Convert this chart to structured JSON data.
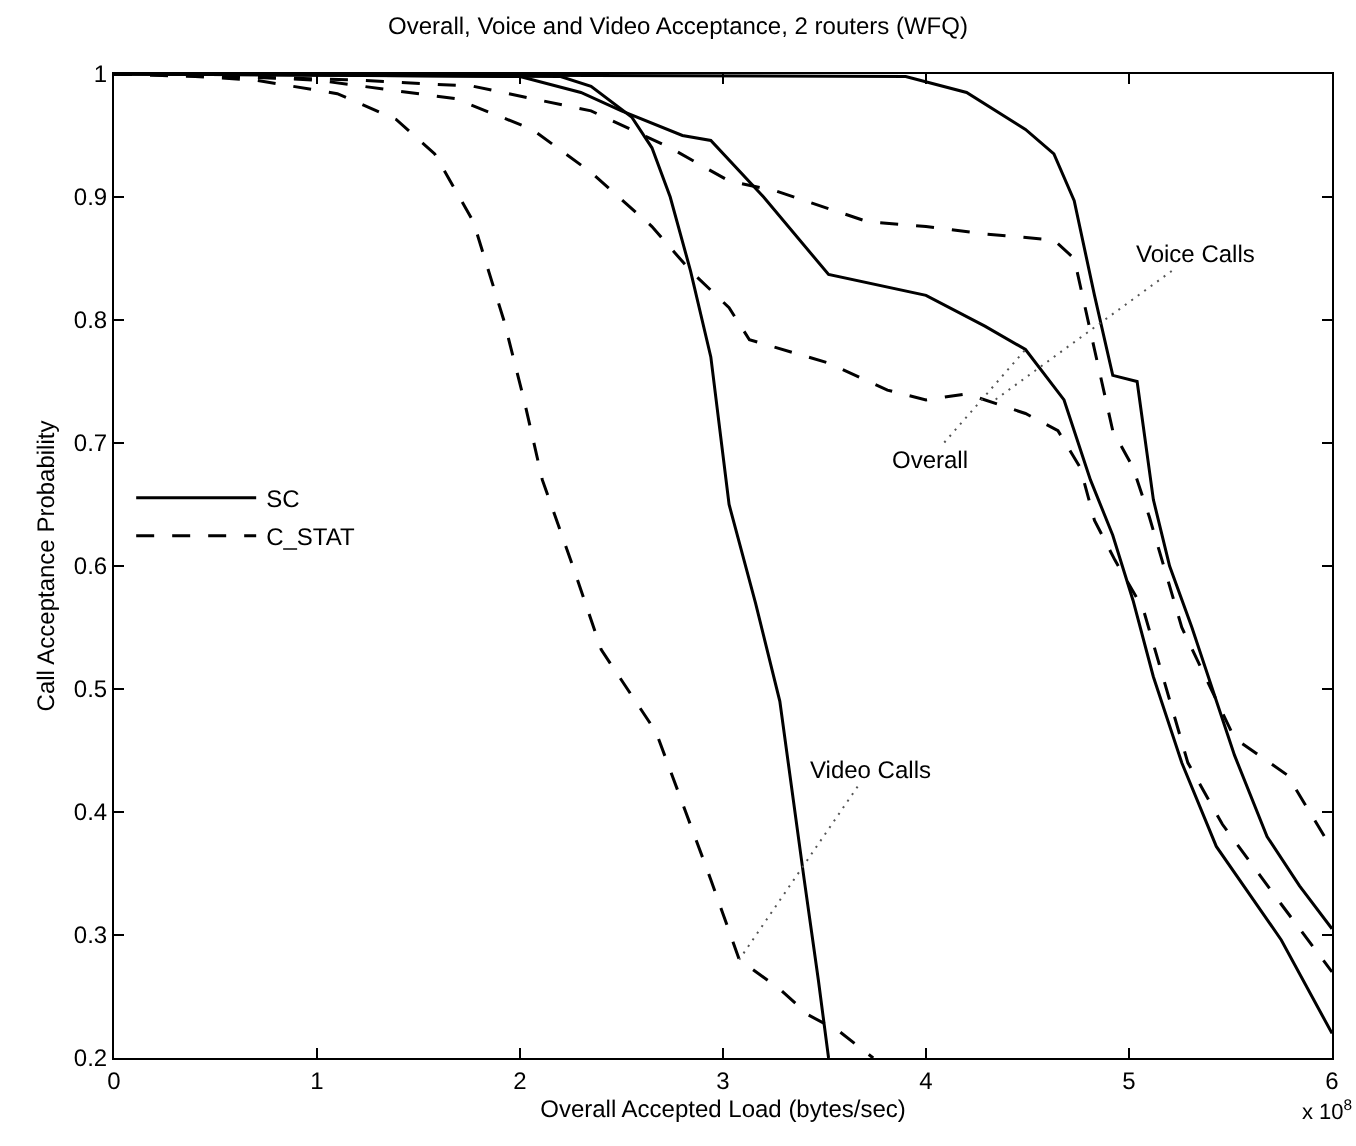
{
  "chart_data": {
    "type": "line",
    "title": "Overall, Voice and Video Acceptance, 2 routers (WFQ)",
    "xlabel": "Overall Accepted Load (bytes/sec)",
    "ylabel": "Call Acceptance Probability",
    "xlim": [
      0,
      6
    ],
    "xticks": [
      0,
      1,
      2,
      3,
      4,
      5,
      6
    ],
    "ylim": [
      0.2,
      1
    ],
    "yticks": [
      0.2,
      0.3,
      0.4,
      0.5,
      0.6,
      0.7,
      0.8,
      0.9,
      1
    ],
    "grid": false,
    "legend": "left",
    "marker": "none",
    "series": [
      {
        "name": "SC",
        "color": "#000000",
        "line_style": "solid",
        "x": [
          0,
          3.9,
          4.2,
          4.49,
          4.63,
          4.73,
          4.83,
          4.92,
          5.04,
          5.12,
          5.2,
          5.31,
          5.52,
          5.68,
          5.84,
          6
        ],
        "values": [
          1,
          0.998,
          0.985,
          0.955,
          0.935,
          0.897,
          0.82,
          0.755,
          0.75,
          0.654,
          0.6,
          0.55,
          0.446,
          0.38,
          0.34,
          0.305
        ]
      },
      {
        "color": "#000000",
        "line_style": "solid",
        "x": [
          0,
          2,
          2.3,
          2.5,
          2.8,
          2.94,
          3.2,
          3.52,
          4.0,
          4.29,
          4.49,
          4.68,
          4.81,
          4.92,
          5.02,
          5.12,
          5.26,
          5.43,
          5.75,
          6
        ],
        "values": [
          1,
          0.998,
          0.985,
          0.97,
          0.95,
          0.946,
          0.9,
          0.837,
          0.82,
          0.795,
          0.776,
          0.735,
          0.67,
          0.625,
          0.572,
          0.51,
          0.44,
          0.372,
          0.296,
          0.22
        ]
      },
      {
        "color": "#000000",
        "line_style": "solid",
        "x": [
          0,
          2.2,
          2.35,
          2.55,
          2.65,
          2.74,
          2.84,
          2.94,
          3.03,
          3.16,
          3.28,
          3.4,
          3.47,
          3.52
        ],
        "values": [
          1,
          0.998,
          0.99,
          0.965,
          0.94,
          0.9,
          0.84,
          0.77,
          0.65,
          0.57,
          0.49,
          0.345,
          0.263,
          0.2
        ]
      },
      {
        "name": "C_STAT",
        "color": "#000000",
        "line_style": "dashed",
        "x": [
          0,
          0.6,
          1.2,
          1.77,
          2.35,
          2.74,
          3.03,
          3.26,
          3.71,
          4.0,
          4.29,
          4.63,
          4.73,
          4.83,
          4.92,
          5.02,
          5.1,
          5.26,
          5.52,
          5.78,
          6
        ],
        "values": [
          1,
          0.998,
          0.995,
          0.99,
          0.97,
          0.94,
          0.913,
          0.905,
          0.88,
          0.876,
          0.87,
          0.865,
          0.85,
          0.776,
          0.71,
          0.68,
          0.64,
          0.55,
          0.46,
          0.43,
          0.37
        ]
      },
      {
        "color": "#000000",
        "line_style": "dashed",
        "x": [
          0,
          0.6,
          1.0,
          1.68,
          2.06,
          2.35,
          2.65,
          2.84,
          3.03,
          3.13,
          3.52,
          3.81,
          4.0,
          4.2,
          4.49,
          4.65,
          4.76,
          4.83,
          4.93,
          5.07,
          5.29,
          5.46,
          5.75,
          6
        ],
        "values": [
          1,
          0.998,
          0.995,
          0.98,
          0.955,
          0.92,
          0.876,
          0.84,
          0.81,
          0.784,
          0.765,
          0.743,
          0.735,
          0.74,
          0.724,
          0.71,
          0.68,
          0.637,
          0.605,
          0.565,
          0.44,
          0.39,
          0.325,
          0.27
        ]
      },
      {
        "color": "#000000",
        "line_style": "dashed",
        "x": [
          0,
          0.4,
          0.7,
          1.1,
          1.39,
          1.58,
          1.77,
          1.92,
          2.02,
          2.11,
          2.26,
          2.4,
          2.67,
          2.94,
          3.08,
          3.28,
          3.42,
          3.57,
          3.74
        ],
        "values": [
          1,
          0.998,
          0.995,
          0.984,
          0.963,
          0.935,
          0.88,
          0.8,
          0.735,
          0.67,
          0.6,
          0.532,
          0.465,
          0.345,
          0.28,
          0.256,
          0.235,
          0.222,
          0.2
        ]
      }
    ],
    "annotations": [
      {
        "text": "Voice Calls",
        "x": 4.34,
        "y": 0.735
      },
      {
        "text": "Overall",
        "x": 4.49,
        "y": 0.776
      },
      {
        "text": "Video Calls",
        "x": 3.08,
        "y": 0.28
      },
      "x 10$^{8}$"
    ]
  }
}
